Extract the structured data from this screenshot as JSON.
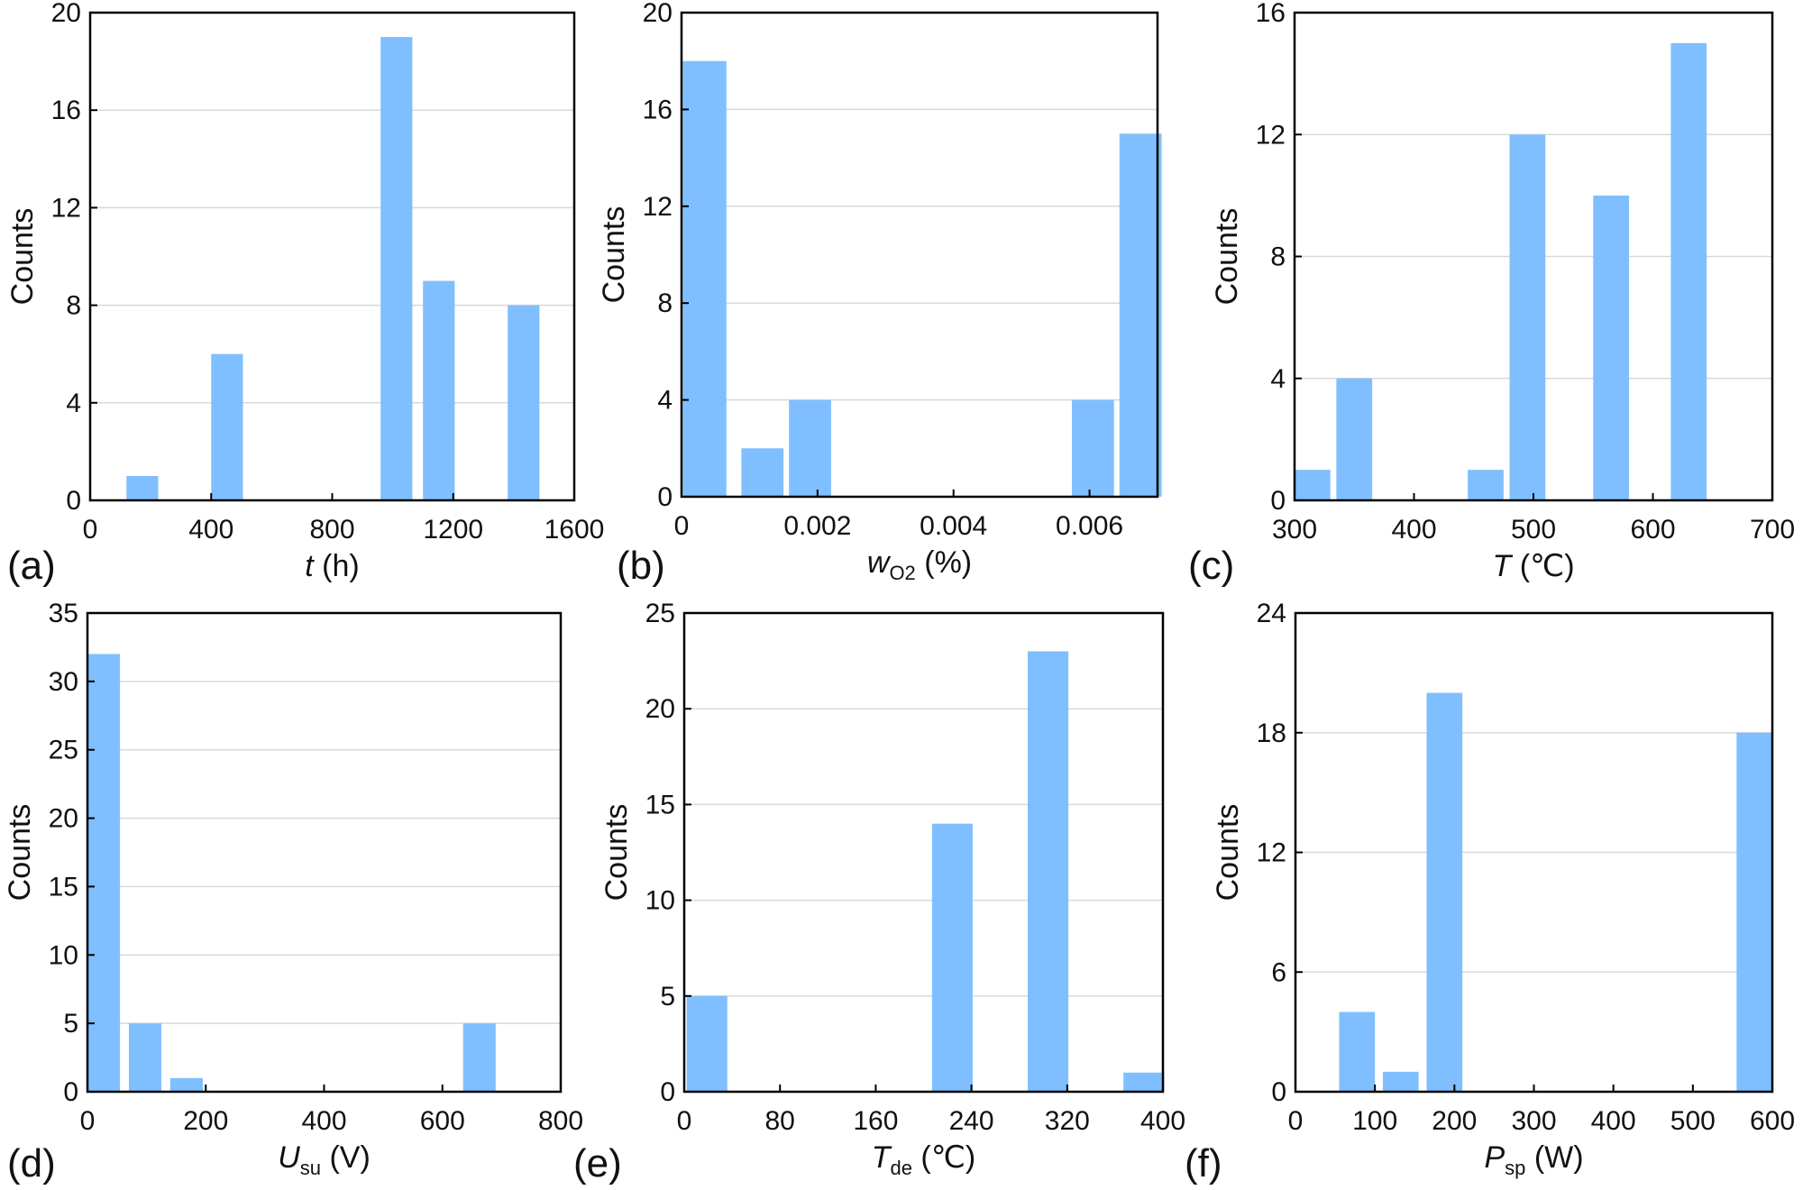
{
  "figure": {
    "background": "#ffffff",
    "bar_color": "#80bfff",
    "grid_color": "#d9d9d9",
    "axis_color": "#000000"
  },
  "chart_data": [
    {
      "id": "a",
      "type": "bar",
      "panel_label": "(a)",
      "xlabel": {
        "parts": [
          {
            "text": "t",
            "italic": true
          },
          {
            "text": " (h)"
          }
        ]
      },
      "ylabel": "Counts",
      "xlim": [
        0,
        1600
      ],
      "ylim": [
        0,
        20
      ],
      "xticks": [
        0,
        400,
        800,
        1200,
        1600
      ],
      "xtick_labels": [
        "0",
        "400",
        "800",
        "1200",
        "1600"
      ],
      "yticks": [
        0,
        4,
        8,
        12,
        16,
        20
      ],
      "ytick_labels": [
        "0",
        "4",
        "8",
        "12",
        "16",
        "20"
      ],
      "bars": [
        {
          "x0": 120,
          "x1": 225,
          "value": 1
        },
        {
          "x0": 400,
          "x1": 505,
          "value": 6
        },
        {
          "x0": 960,
          "x1": 1065,
          "value": 19
        },
        {
          "x0": 1100,
          "x1": 1205,
          "value": 9
        },
        {
          "x0": 1380,
          "x1": 1485,
          "value": 8
        }
      ]
    },
    {
      "id": "b",
      "type": "bar",
      "panel_label": "(b)",
      "xlabel": {
        "parts": [
          {
            "text": "w",
            "italic": true
          },
          {
            "text": "O2",
            "sub": true
          },
          {
            "text": " (%)"
          }
        ]
      },
      "ylabel": "Counts",
      "xlim": [
        0,
        0.007
      ],
      "ylim": [
        0,
        20
      ],
      "xticks": [
        0,
        0.002,
        0.004,
        0.006
      ],
      "xtick_labels": [
        "0",
        "0.002",
        "0.004",
        "0.006"
      ],
      "yticks": [
        0,
        4,
        8,
        12,
        16,
        20
      ],
      "ytick_labels": [
        "0",
        "4",
        "8",
        "12",
        "16",
        "20"
      ],
      "bars": [
        {
          "x0": 2e-05,
          "x1": 0.00066,
          "value": 18
        },
        {
          "x0": 0.00088,
          "x1": 0.0015,
          "value": 2
        },
        {
          "x0": 0.00158,
          "x1": 0.0022,
          "value": 4
        },
        {
          "x0": 0.00574,
          "x1": 0.00636,
          "value": 4
        },
        {
          "x0": 0.00644,
          "x1": 0.00706,
          "value": 15
        }
      ]
    },
    {
      "id": "c",
      "type": "bar",
      "panel_label": "(c)",
      "xlabel": {
        "parts": [
          {
            "text": "T",
            "italic": true
          },
          {
            "text": " (℃)"
          }
        ]
      },
      "ylabel": "Counts",
      "xlim": [
        300,
        700
      ],
      "ylim": [
        0,
        16
      ],
      "xticks": [
        300,
        400,
        500,
        600,
        700
      ],
      "xtick_labels": [
        "300",
        "400",
        "500",
        "600",
        "700"
      ],
      "yticks": [
        0,
        4,
        8,
        12,
        16
      ],
      "ytick_labels": [
        "0",
        "4",
        "8",
        "12",
        "16"
      ],
      "bars": [
        {
          "x0": 300,
          "x1": 330,
          "value": 1
        },
        {
          "x0": 335,
          "x1": 365,
          "value": 4
        },
        {
          "x0": 445,
          "x1": 475,
          "value": 1
        },
        {
          "x0": 480,
          "x1": 510,
          "value": 12
        },
        {
          "x0": 550,
          "x1": 580,
          "value": 10
        },
        {
          "x0": 615,
          "x1": 645,
          "value": 15
        }
      ]
    },
    {
      "id": "d",
      "type": "bar",
      "panel_label": "(d)",
      "xlabel": {
        "parts": [
          {
            "text": "U",
            "italic": true
          },
          {
            "text": "su",
            "sub": true
          },
          {
            "text": " (V)"
          }
        ]
      },
      "ylabel": "Counts",
      "xlim": [
        0,
        800
      ],
      "ylim": [
        0,
        35
      ],
      "xticks": [
        0,
        200,
        400,
        600,
        800
      ],
      "xtick_labels": [
        "0",
        "200",
        "400",
        "600",
        "800"
      ],
      "yticks": [
        0,
        5,
        10,
        15,
        20,
        25,
        30,
        35
      ],
      "ytick_labels": [
        "0",
        "5",
        "10",
        "15",
        "20",
        "25",
        "30",
        "35"
      ],
      "bars": [
        {
          "x0": 0,
          "x1": 55,
          "value": 32
        },
        {
          "x0": 70,
          "x1": 125,
          "value": 5
        },
        {
          "x0": 140,
          "x1": 195,
          "value": 1
        },
        {
          "x0": 635,
          "x1": 690,
          "value": 5
        }
      ]
    },
    {
      "id": "e",
      "type": "bar",
      "panel_label": "(e)",
      "xlabel": {
        "parts": [
          {
            "text": "T",
            "italic": true
          },
          {
            "text": "de",
            "sub": true
          },
          {
            "text": " (℃)"
          }
        ]
      },
      "ylabel": "Counts",
      "xlim": [
        0,
        400
      ],
      "ylim": [
        0,
        25
      ],
      "xticks": [
        0,
        80,
        160,
        240,
        320,
        400
      ],
      "xtick_labels": [
        "0",
        "80",
        "160",
        "240",
        "320",
        "400"
      ],
      "yticks": [
        0,
        5,
        10,
        15,
        20,
        25
      ],
      "ytick_labels": [
        "0",
        "5",
        "10",
        "15",
        "20",
        "25"
      ],
      "bars": [
        {
          "x0": 2,
          "x1": 36,
          "value": 5
        },
        {
          "x0": 207,
          "x1": 241,
          "value": 14
        },
        {
          "x0": 287,
          "x1": 321,
          "value": 23
        },
        {
          "x0": 367,
          "x1": 401,
          "value": 1
        }
      ]
    },
    {
      "id": "f",
      "type": "bar",
      "panel_label": "(f)",
      "xlabel": {
        "parts": [
          {
            "text": "P",
            "italic": true
          },
          {
            "text": "sp",
            "sub": true
          },
          {
            "text": " (W)"
          }
        ]
      },
      "ylabel": "Counts",
      "xlim": [
        0,
        600
      ],
      "ylim": [
        0,
        24
      ],
      "xticks": [
        0,
        100,
        200,
        300,
        400,
        500,
        600
      ],
      "xtick_labels": [
        "0",
        "100",
        "200",
        "300",
        "400",
        "500",
        "600"
      ],
      "yticks": [
        0,
        6,
        12,
        18,
        24
      ],
      "ytick_labels": [
        "0",
        "6",
        "12",
        "18",
        "24"
      ],
      "bars": [
        {
          "x0": 55,
          "x1": 100,
          "value": 4
        },
        {
          "x0": 110,
          "x1": 155,
          "value": 1
        },
        {
          "x0": 165,
          "x1": 210,
          "value": 20
        },
        {
          "x0": 555,
          "x1": 600,
          "value": 18
        }
      ]
    }
  ]
}
